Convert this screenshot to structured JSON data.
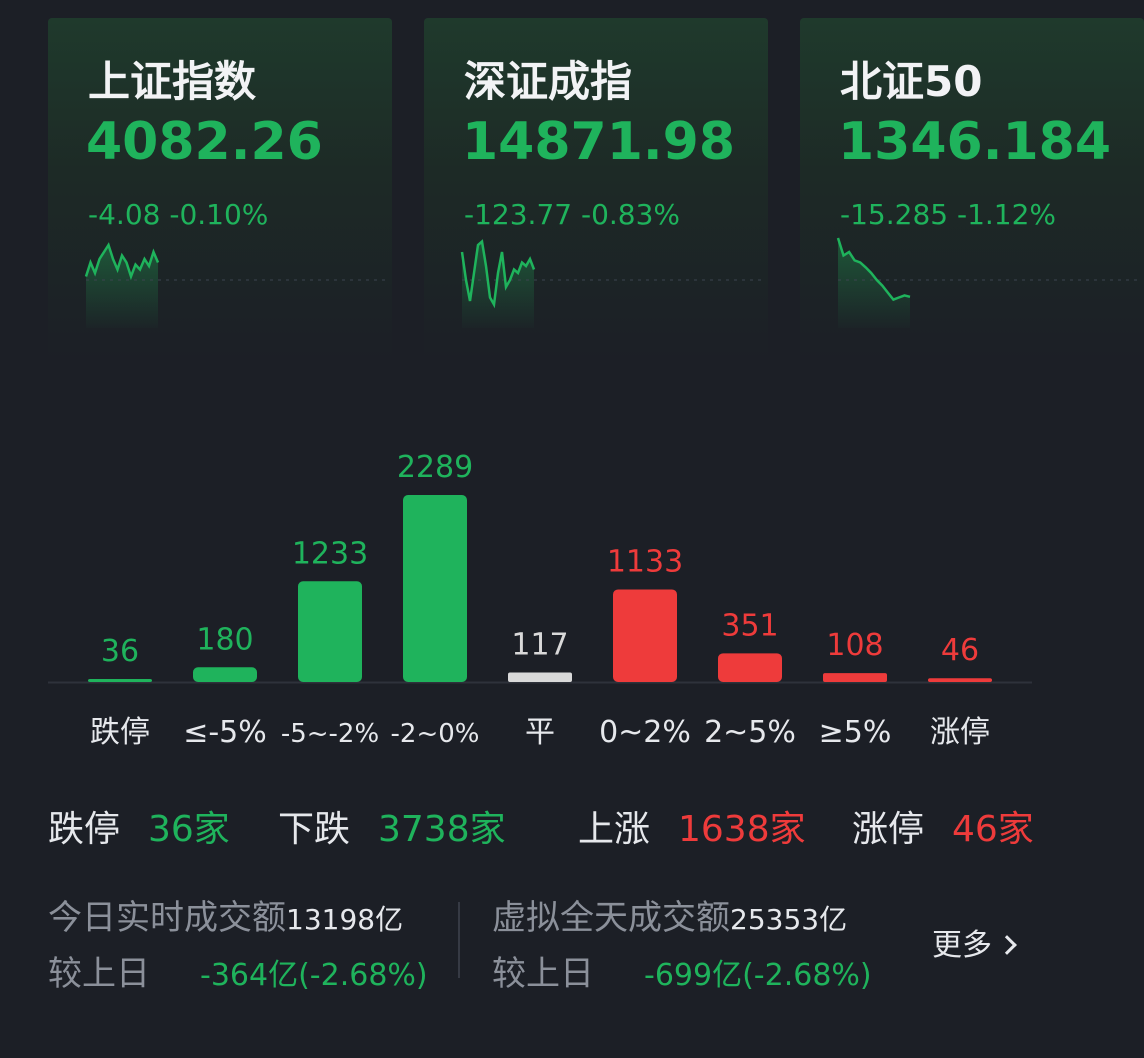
{
  "indices": [
    {
      "name": "上证指数",
      "price": "4082.26",
      "change": "-4.08",
      "pct": "-0.10%",
      "trend": [
        0.55,
        0.35,
        0.5,
        0.3,
        0.2,
        0.1,
        0.3,
        0.45,
        0.25,
        0.35,
        0.55,
        0.38,
        0.45,
        0.3,
        0.4,
        0.2,
        0.35
      ]
    },
    {
      "name": "深证成指",
      "price": "14871.98",
      "change": "-123.77",
      "pct": "-0.83%",
      "trend": [
        0.2,
        0.6,
        0.9,
        0.5,
        0.1,
        0.05,
        0.4,
        0.85,
        0.95,
        0.5,
        0.2,
        0.7,
        0.6,
        0.45,
        0.5,
        0.35,
        0.4,
        0.3,
        0.45
      ]
    },
    {
      "name": "北证50",
      "price": "1346.184",
      "change": "-15.285",
      "pct": "-1.12%",
      "trend": [
        0.0,
        0.25,
        0.2,
        0.32,
        0.35,
        0.42,
        0.5,
        0.6,
        0.68,
        0.78,
        0.88,
        0.85,
        0.82,
        0.84
      ]
    }
  ],
  "chart_data": {
    "type": "bar",
    "categories": [
      "跌停",
      "≤-5%",
      "-5~-2%",
      "-2~0%",
      "平",
      "0~2%",
      "2~5%",
      "≥5%",
      "涨停"
    ],
    "values": [
      36,
      180,
      1233,
      2289,
      117,
      1133,
      351,
      108,
      46
    ],
    "colors": [
      "#1fb35c",
      "#1fb35c",
      "#1fb35c",
      "#1fb35c",
      "#d9d9d9",
      "#ee3b3b",
      "#ee3b3b",
      "#ee3b3b",
      "#ee3b3b"
    ],
    "label_colors": [
      "#1fb35c",
      "#1fb35c",
      "#1fb35c",
      "#1fb35c",
      "#d9d9d9",
      "#ee3b3b",
      "#ee3b3b",
      "#ee3b3b",
      "#ee3b3b"
    ]
  },
  "summary": {
    "limit_down_label": "跌停",
    "limit_down_value": "36家",
    "down_label": "下跌",
    "down_value": "3738家",
    "up_label": "上涨",
    "up_value": "1638家",
    "limit_up_label": "涨停",
    "limit_up_value": "46家"
  },
  "turnover": {
    "today_label": "今日实时成交额",
    "today_value": "13198亿",
    "today_cmp_label": "较上日",
    "today_cmp_value": "-364亿(-2.68%)",
    "full_label": "虚拟全天成交额",
    "full_value": "25353亿",
    "full_cmp_label": "较上日",
    "full_cmp_value": "-699亿(-2.68%)"
  },
  "more_label": "更多",
  "colors": {
    "green": "#1fb35c",
    "red": "#ee3b3b",
    "background": "#1c1f26"
  }
}
